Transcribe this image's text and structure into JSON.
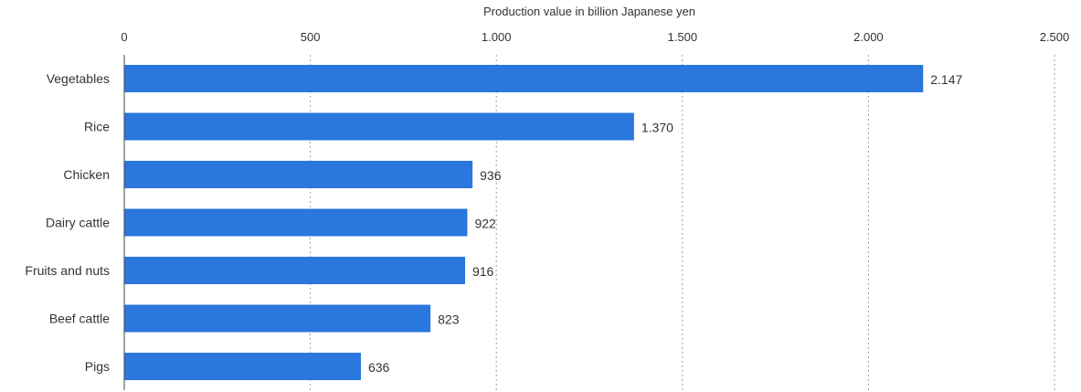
{
  "chart_data": {
    "type": "bar",
    "orientation": "horizontal",
    "xlabel": "Production value in billion Japanese yen",
    "categories": [
      "Vegetables",
      "Rice",
      "Chicken",
      "Dairy cattle",
      "Fruits and nuts",
      "Beef cattle",
      "Pigs"
    ],
    "values": [
      2147,
      1370,
      936,
      922,
      916,
      823,
      636
    ],
    "value_labels": [
      "2.147",
      "1.370",
      "936",
      "922",
      "916",
      "823",
      "636"
    ],
    "xlim": [
      0,
      2500
    ],
    "x_ticks": [
      0,
      500,
      1000,
      1500,
      2000,
      2500
    ],
    "x_tick_labels": [
      "0",
      "500",
      "1.000",
      "1.500",
      "2.000",
      "2.500"
    ],
    "x_axis_position": "top",
    "grid": true,
    "bar_color": "#2a77de"
  }
}
